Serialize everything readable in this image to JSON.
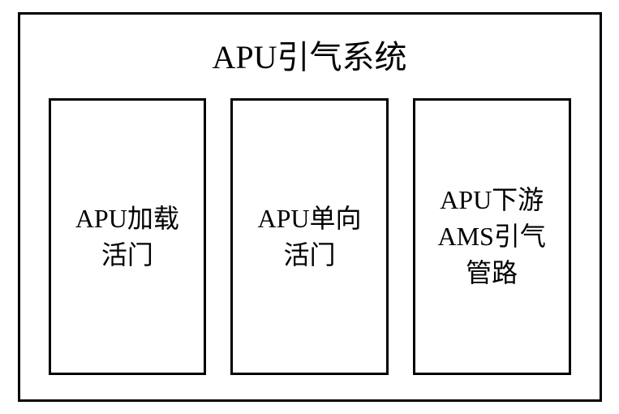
{
  "diagram": {
    "type": "block-diagram",
    "title": "APU引气系统",
    "title_fontsize": 40,
    "boxes": [
      {
        "label_line1": "APU加载",
        "label_line2": "活门"
      },
      {
        "label_line1": "APU单向",
        "label_line2": "活门"
      },
      {
        "label_line1": "APU下游",
        "label_line2": "AMS引气",
        "label_line3": "管路"
      }
    ],
    "box_fontsize": 32,
    "border_color": "#000000",
    "border_width": 3,
    "background_color": "#ffffff",
    "text_color": "#000000",
    "layout": {
      "outer_width": 720,
      "outer_height": 480,
      "box_gap": 30,
      "arrangement": "horizontal-row"
    }
  }
}
